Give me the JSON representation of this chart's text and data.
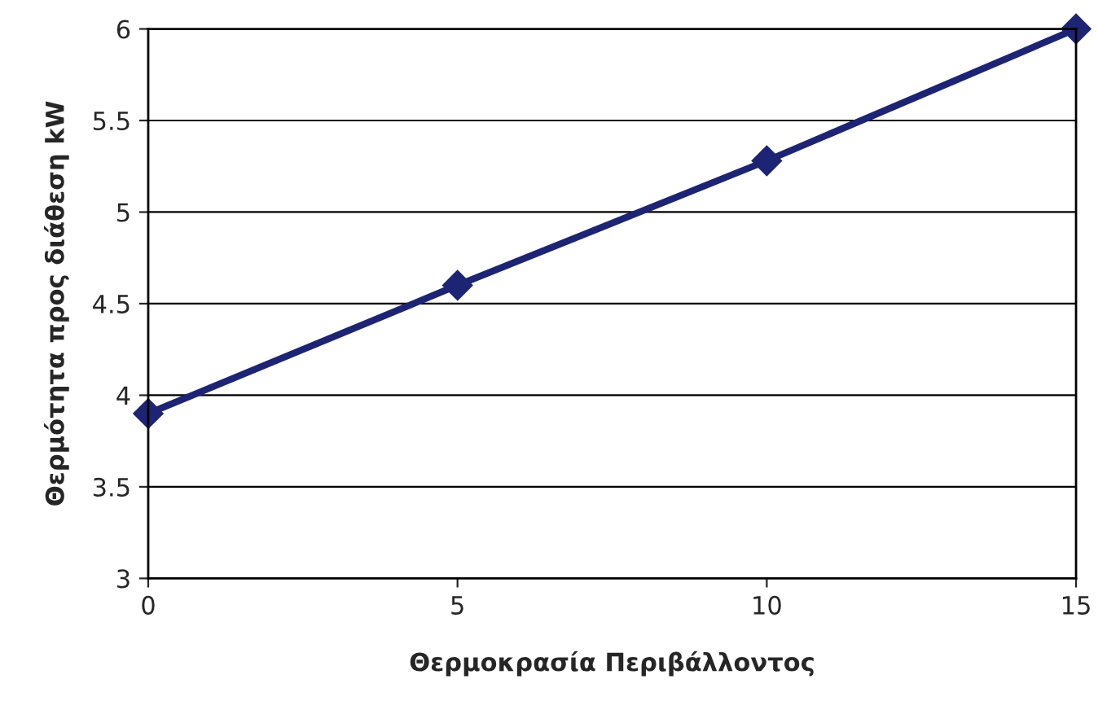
{
  "chart_data": {
    "type": "line",
    "xlabel": "Θερμοκρασία Περιβάλλοντος",
    "ylabel": "Θερμότητα προς διάθεση kW",
    "x": [
      0,
      5,
      10,
      15
    ],
    "series": [
      {
        "color": "#1c2473",
        "values": [
          3.9,
          4.6,
          5.28,
          6.0
        ]
      }
    ],
    "xlim": [
      0,
      15
    ],
    "xticks": [
      0,
      5,
      10,
      15
    ],
    "ylim": [
      3,
      6
    ],
    "yticks": [
      3,
      3.5,
      4,
      4.5,
      5,
      5.5,
      6
    ],
    "grid": "y",
    "marker": "diamond",
    "line_style": "solid"
  }
}
